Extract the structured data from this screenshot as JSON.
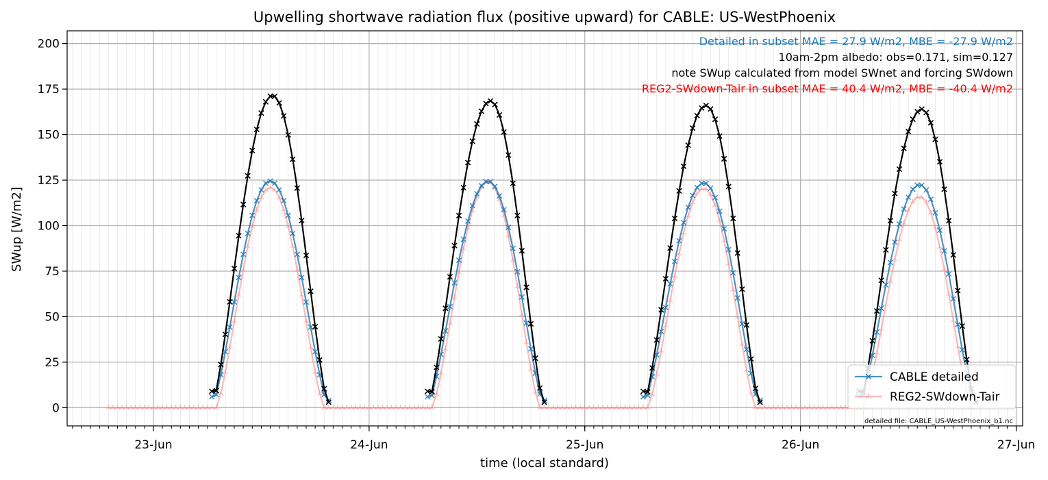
{
  "chart_data": {
    "type": "line",
    "title": "Upwelling shortwave radiation flux (positive upward) for CABLE: US-WestPhoenix",
    "xlabel": "time (local standard)",
    "ylabel": "SWup [W/m2]",
    "x_ticks": [
      "23-Jun",
      "24-Jun",
      "25-Jun",
      "26-Jun",
      "27-Jun"
    ],
    "x_range_days": [
      22.6,
      27.03
    ],
    "ylim": [
      -10,
      207
    ],
    "y_ticks": [
      0,
      25,
      50,
      75,
      100,
      125,
      150,
      175,
      200
    ],
    "grid": true,
    "legend_position": "lower-right",
    "annotations": [
      {
        "text": "Detailed in subset MAE = 27.9 W/m2, MBE = -27.9 W/m2",
        "color": "#1f77b4"
      },
      {
        "text": "10am-2pm albedo: obs=0.171, sim=0.127",
        "color": "#000000"
      },
      {
        "text": "note SWup calculated from model SWnet and forcing SWdown",
        "color": "#000000"
      },
      {
        "text": "REG2-SWdown-Tair in subset MAE = 40.4 W/m2, MBE = -40.4 W/m2",
        "color": "#ff0000"
      }
    ],
    "footnote": "detailed file: CABLE_US-WestPhoenix_b1.nc",
    "series": [
      {
        "name": "",
        "role": "observed",
        "color": "#000000",
        "marker": "x",
        "days": [
          {
            "day": 23,
            "start_hour": 6.5,
            "end_hour": 19.5,
            "peak": 171.5,
            "peak_hour": 13.25
          },
          {
            "day": 24,
            "start_hour": 6.5,
            "end_hour": 19.5,
            "peak": 168.5,
            "peak_hour": 13.5
          },
          {
            "day": 25,
            "start_hour": 6.5,
            "end_hour": 19.5,
            "peak": 166.0,
            "peak_hour": 13.5
          },
          {
            "day": 26,
            "start_hour": 6.5,
            "end_hour": 19.5,
            "peak": 164.0,
            "peak_hour": 13.5
          }
        ]
      },
      {
        "name": "CABLE detailed",
        "role": "model",
        "color": "#1f77b4",
        "marker": "x",
        "days": [
          {
            "day": 23,
            "start_hour": 6.5,
            "end_hour": 19.5,
            "peak": 124.5,
            "peak_hour": 13.0
          },
          {
            "day": 24,
            "start_hour": 6.5,
            "end_hour": 19.5,
            "peak": 124.5,
            "peak_hour": 13.25
          },
          {
            "day": 25,
            "start_hour": 6.5,
            "end_hour": 19.5,
            "peak": 123.5,
            "peak_hour": 13.25
          },
          {
            "day": 26,
            "start_hour": 6.5,
            "end_hour": 19.5,
            "peak": 122.5,
            "peak_hour": 13.25
          }
        ]
      },
      {
        "name": "REG2-SWdown-Tair",
        "role": "model",
        "color": "#ff7f7f",
        "marker": "tri",
        "range_start_day": 22.8,
        "range_end_day": 26.8,
        "days": [
          {
            "day": 23,
            "start_hour": 7.0,
            "end_hour": 19.0,
            "peak": 121.0,
            "peak_hour": 13.0
          },
          {
            "day": 24,
            "start_hour": 7.0,
            "end_hour": 19.0,
            "peak": 124.0,
            "peak_hour": 13.25
          },
          {
            "day": 25,
            "start_hour": 7.0,
            "end_hour": 19.0,
            "peak": 120.5,
            "peak_hour": 13.25
          },
          {
            "day": 26,
            "start_hour": 7.0,
            "end_hour": 19.0,
            "peak": 116.0,
            "peak_hour": 13.25
          }
        ]
      }
    ]
  }
}
